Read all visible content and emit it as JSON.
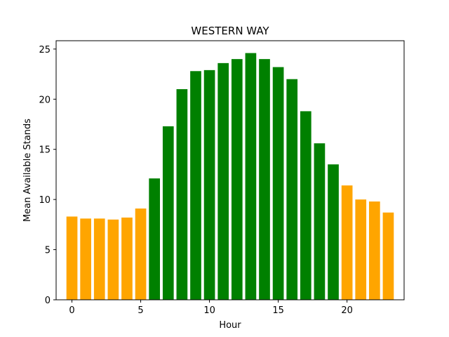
{
  "chart_data": {
    "type": "bar",
    "title": "WESTERN WAY",
    "xlabel": "Hour",
    "ylabel": "Mean Available Stands",
    "x": [
      0,
      1,
      2,
      3,
      4,
      5,
      6,
      7,
      8,
      9,
      10,
      11,
      12,
      13,
      14,
      15,
      16,
      17,
      18,
      19,
      20,
      21,
      22,
      23
    ],
    "values": [
      8.3,
      8.1,
      8.1,
      8.0,
      8.2,
      9.1,
      12.1,
      17.3,
      21.0,
      22.8,
      22.9,
      23.6,
      24.0,
      24.6,
      24.0,
      23.2,
      22.0,
      18.8,
      15.6,
      13.5,
      11.4,
      10.0,
      9.8,
      8.7
    ],
    "colors": [
      "#ffa500",
      "#ffa500",
      "#ffa500",
      "#ffa500",
      "#ffa500",
      "#ffa500",
      "#008000",
      "#008000",
      "#008000",
      "#008000",
      "#008000",
      "#008000",
      "#008000",
      "#008000",
      "#008000",
      "#008000",
      "#008000",
      "#008000",
      "#008000",
      "#008000",
      "#ffa500",
      "#ffa500",
      "#ffa500",
      "#ffa500"
    ],
    "xticks": [
      0,
      5,
      10,
      15,
      20
    ],
    "xtick_labels": [
      "0",
      "5",
      "10",
      "15",
      "20"
    ],
    "yticks": [
      0,
      5,
      10,
      15,
      20,
      25
    ],
    "ytick_labels": [
      "0",
      "5",
      "10",
      "15",
      "20",
      "25"
    ],
    "xlim": [
      -1.15,
      24.15
    ],
    "ylim": [
      0,
      25.83
    ],
    "grid": false,
    "legend": "none"
  }
}
